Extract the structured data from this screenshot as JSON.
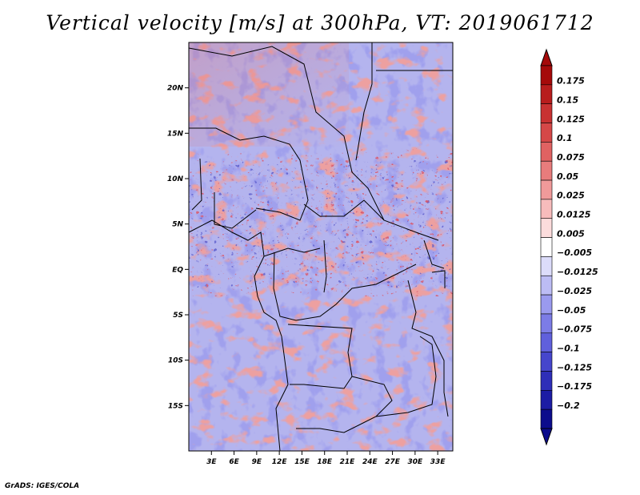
{
  "title": "Vertical velocity [m/s] at 300hPa, VT: 2019061712",
  "footer": "GrADS: IGES/COLA",
  "chart_data": {
    "type": "heatmap",
    "title": "Vertical velocity [m/s] at 300hPa, VT: 2019061712",
    "variable": "Vertical velocity",
    "units": "m/s",
    "level": "300hPa",
    "valid_time": "2019061712",
    "x_ticks": [
      "3E",
      "6E",
      "9E",
      "12E",
      "15E",
      "18E",
      "21E",
      "24E",
      "27E",
      "30E",
      "33E"
    ],
    "x_tick_values": [
      3,
      6,
      9,
      12,
      15,
      18,
      21,
      24,
      27,
      30,
      33
    ],
    "y_ticks": [
      "20N",
      "15N",
      "10N",
      "5N",
      "EQ",
      "5S",
      "10S",
      "15S"
    ],
    "y_tick_values": [
      20,
      15,
      10,
      5,
      0,
      -5,
      -10,
      -15
    ],
    "xlim": [
      0,
      35
    ],
    "ylim": [
      -20,
      25
    ],
    "colorbar": {
      "labels": [
        "0.175",
        "0.15",
        "0.125",
        "0.1",
        "0.075",
        "0.05",
        "0.025",
        "0.0125",
        "0.005",
        "−0.005",
        "−0.0125",
        "−0.025",
        "−0.05",
        "−0.075",
        "−0.1",
        "−0.125",
        "−0.175",
        "−0.2"
      ],
      "colors": [
        "#a50a0a",
        "#b81d1d",
        "#c83232",
        "#d54848",
        "#e06262",
        "#e87c7c",
        "#f09a9a",
        "#f7bcbc",
        "#fcdcdc",
        "#ffffff",
        "#dcdcfa",
        "#bcbcf4",
        "#9a9aee",
        "#7c7ce6",
        "#6060dc",
        "#4646cc",
        "#2e2eb8",
        "#1c1ca4",
        "#0c0c8c"
      ]
    }
  }
}
